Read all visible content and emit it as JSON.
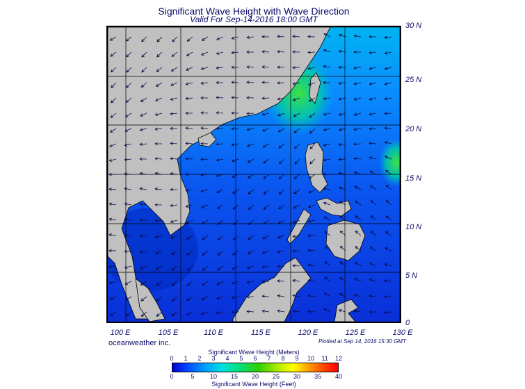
{
  "title": "Significant Wave Height with Wave Direction",
  "subtitle": "Valid For Sep-14-2016 18:00 GMT",
  "lat_labels": [
    "30 N",
    "25 N",
    "20 N",
    "15 N",
    "10 N",
    "5 N",
    "0"
  ],
  "lon_labels": [
    "100 E",
    "105 E",
    "110 E",
    "115 E",
    "120 E",
    "125 E",
    "130 E"
  ],
  "branding": "oceanweather inc.",
  "plotted": "Plotted at Sep 14, 2016 15:30 GMT",
  "legend": {
    "meters_title": "Significant Wave Height (Meters)",
    "meters_ticks": [
      "0",
      "1",
      "2",
      "3",
      "4",
      "5",
      "6",
      "7",
      "8",
      "9",
      "10",
      "11",
      "12"
    ],
    "feet_title": "Significant Wave Height (Feet)",
    "feet_ticks": [
      "0",
      "5",
      "10",
      "15",
      "20",
      "25",
      "30",
      "35",
      "40"
    ]
  },
  "colors": {
    "land": "#c0c0c0",
    "sea_low": "#0030e0",
    "sea_mid": "#0090ff",
    "sea_high": "#00d0a0",
    "peak": "#40e000"
  },
  "map_extent": {
    "lon": [
      98,
      130
    ],
    "lat": [
      0,
      30
    ]
  }
}
